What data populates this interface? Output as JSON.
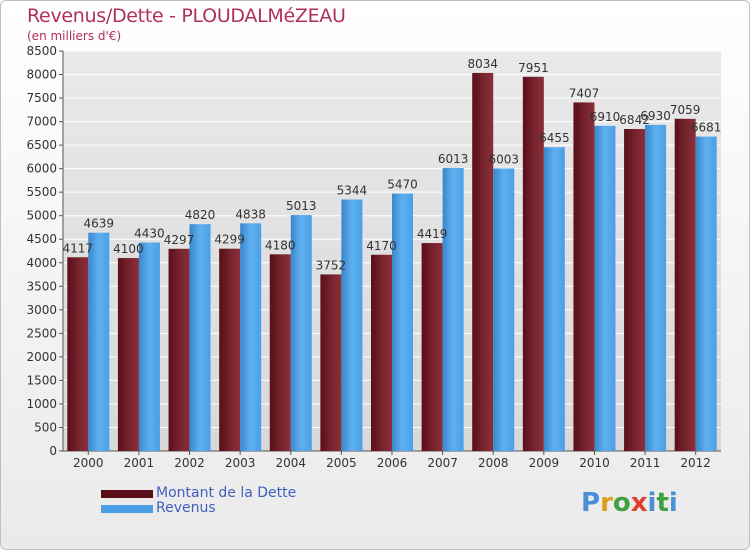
{
  "title": "Revenus/Dette - PLOUDALMéZEAU",
  "subtitle": "(en milliers d'€)",
  "logo": {
    "letters": [
      "P",
      "r",
      "o",
      "x",
      "i",
      "t",
      "i"
    ],
    "colors": [
      "#4a90d9",
      "#d9a020",
      "#3fa040",
      "#e0402a",
      "#4a90d9",
      "#3fa040",
      "#4a90d9"
    ]
  },
  "colors": {
    "dette": "#7a1f2a",
    "revenus": "#4aa0e6",
    "title": "#b0305a"
  },
  "chart_data": {
    "type": "bar",
    "title": "Revenus/Dette - PLOUDALMéZEAU",
    "ylabel": "(en milliers d'€)",
    "xlabel": "",
    "categories": [
      "2000",
      "2001",
      "2002",
      "2003",
      "2004",
      "2005",
      "2006",
      "2007",
      "2008",
      "2009",
      "2010",
      "2011",
      "2012"
    ],
    "series": [
      {
        "name": "Montant de la Dette",
        "values": [
          4117,
          4100,
          4297,
          4299,
          4180,
          3752,
          4170,
          4419,
          8034,
          7951,
          7407,
          6842,
          7059
        ],
        "labels": [
          "4117",
          "4100",
          "4297",
          "4299",
          "4180",
          "3752",
          "4170",
          "4419",
          "8034",
          "7951",
          "7407",
          "6842",
          "7059"
        ]
      },
      {
        "name": "Revenus",
        "values": [
          4639,
          4430,
          4820,
          4838,
          5013,
          5344,
          5470,
          6013,
          6003,
          6455,
          6910,
          6930,
          6681
        ],
        "labels": [
          "4639",
          "4430",
          "4820",
          "4838",
          "5013",
          "5344",
          "5470",
          "6013",
          "6003",
          "6455",
          "6910",
          "6930",
          "6681"
        ]
      }
    ],
    "ylim": [
      0,
      8500
    ],
    "yticks": [
      "0",
      "500",
      "1000",
      "1500",
      "2000",
      "2500",
      "3000",
      "3500",
      "4000",
      "4500",
      "5000",
      "5500",
      "6000",
      "6500",
      "7000",
      "7500",
      "8000",
      "8500"
    ],
    "grid": true,
    "legend": "bottom-left"
  }
}
